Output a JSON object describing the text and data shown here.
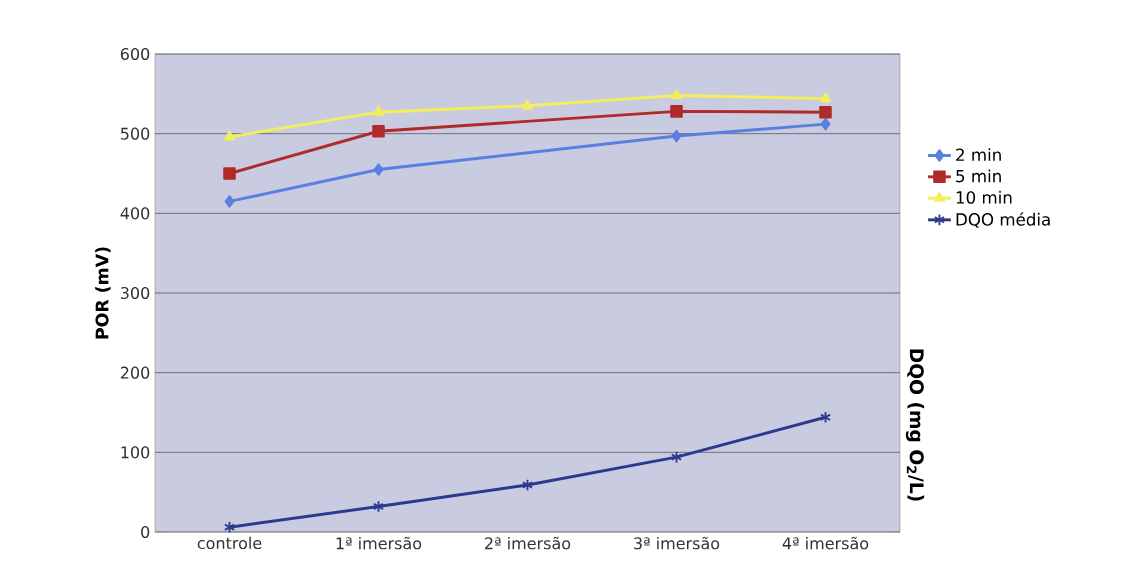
{
  "chart_data": {
    "type": "line",
    "ylabel": "POR (mV)",
    "y2label": "DQO (mg O$_{2}$/L)",
    "categories": [
      "controle",
      "1ª imersão",
      "2ª imersão",
      "3ª imersão",
      "4ª imersão"
    ],
    "series": [
      {
        "name": "2 min",
        "color": "#5b7fe0",
        "marker": "diamond",
        "values": [
          415,
          455,
          null,
          497,
          512
        ]
      },
      {
        "name": "5 min",
        "color": "#b02a2a",
        "marker": "square",
        "values": [
          450,
          503,
          null,
          528,
          527
        ]
      },
      {
        "name": "10 min",
        "color": "#f2ee5c",
        "marker": "triangle",
        "values": [
          496,
          527,
          535,
          548,
          544
        ]
      },
      {
        "name": "DQO média",
        "color": "#2b3a8f",
        "marker": "cross",
        "values": [
          6,
          32,
          59,
          94,
          144
        ]
      }
    ],
    "ylim": [
      0,
      600
    ],
    "yticks": [
      0,
      100,
      200,
      300,
      400,
      500,
      600
    ],
    "grid": "y",
    "legend": "right",
    "line_style": "solid"
  }
}
